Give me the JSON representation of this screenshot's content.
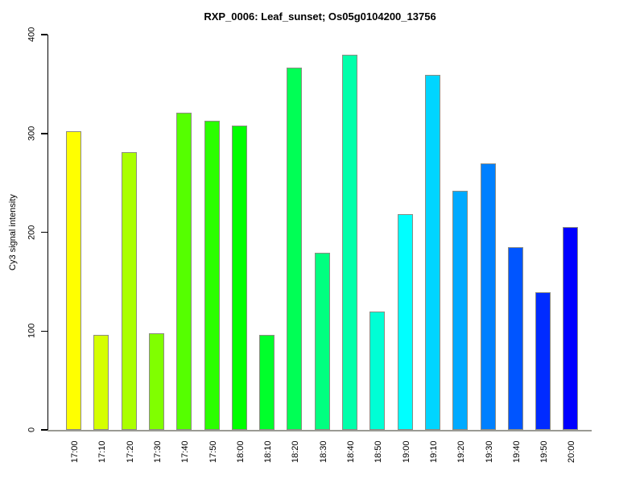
{
  "title": "RXP_0006: Leaf_sunset; Os05g0104200_13756",
  "chart_data": {
    "type": "bar",
    "title": "RXP_0006: Leaf_sunset; Os05g0104200_13756",
    "xlabel": "",
    "ylabel": "Cy3 signal intensity",
    "ylim": [
      0,
      400
    ],
    "yticks": [
      "0",
      "100",
      "200",
      "300",
      "400"
    ],
    "grid": false,
    "legend": false,
    "background": "#FFFFFF",
    "axis_color": "#000000",
    "baseline_color": "#9A9A94",
    "bar_border_color": "#8C8C82",
    "categories": [
      "17:00",
      "17:10",
      "17:20",
      "17:30",
      "17:40",
      "17:50",
      "18:00",
      "18:10",
      "18:20",
      "18:30",
      "18:40",
      "18:50",
      "19:00",
      "19:10",
      "19:20",
      "19:30",
      "19:40",
      "19:50",
      "20:00"
    ],
    "values": [
      302,
      96,
      281,
      98,
      321,
      313,
      308,
      96,
      367,
      179,
      380,
      120,
      218,
      359,
      242,
      270,
      185,
      139,
      205
    ],
    "bar_colors": [
      "#FFFF00",
      "#D5FF00",
      "#AAFF00",
      "#80FF00",
      "#55FF00",
      "#2BFF00",
      "#00FF00",
      "#00FF2B",
      "#00FF55",
      "#00FF80",
      "#00FFAA",
      "#00FFD5",
      "#00FFFF",
      "#00D5FF",
      "#00AAFF",
      "#0080FF",
      "#0055FF",
      "#002BFF",
      "#0000FF"
    ]
  }
}
